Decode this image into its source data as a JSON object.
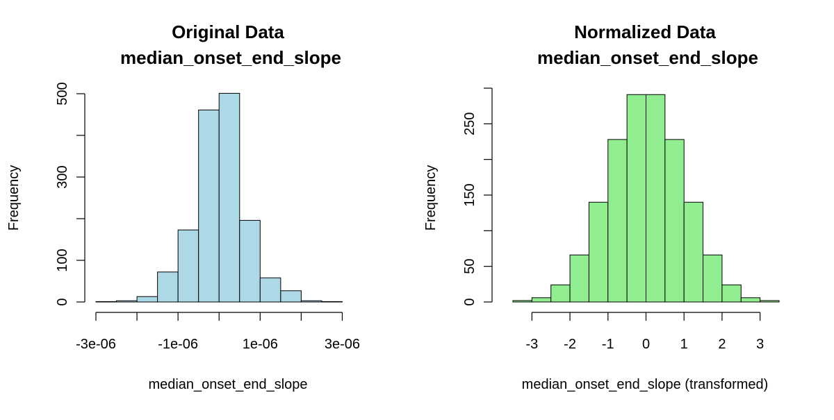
{
  "chart_data": [
    {
      "type": "bar",
      "title": "Original Data",
      "subtitle": "median_onset_end_slope",
      "xlabel": "median_onset_end_slope",
      "ylabel": "Frequency",
      "bar_color": "#add8e6",
      "bin_edges": [
        -3e-06,
        -2.5e-06,
        -2e-06,
        -1.5e-06,
        -1e-06,
        -5e-07,
        0,
        5e-07,
        1e-06,
        1.5e-06,
        2e-06,
        2.5e-06,
        3e-06,
        3.5e-06
      ],
      "values": [
        1,
        3,
        13,
        72,
        173,
        461,
        501,
        196,
        58,
        27,
        3,
        1,
        0
      ],
      "xlim": [
        -3e-06,
        3.5e-06
      ],
      "ylim": [
        0,
        520
      ],
      "x_ticks": [
        -3e-06,
        -2e-06,
        -1e-06,
        0,
        1e-06,
        2e-06,
        3e-06
      ],
      "x_tick_labels": [
        "-3e-06",
        "",
        "-1e-06",
        "",
        "1e-06",
        "",
        "3e-06"
      ],
      "y_ticks": [
        0,
        100,
        200,
        300,
        400,
        500
      ],
      "y_tick_labels": [
        "0",
        "100",
        "",
        "300",
        "",
        "500"
      ],
      "grid": false
    },
    {
      "type": "bar",
      "title": "Normalized Data",
      "subtitle": "median_onset_end_slope",
      "xlabel": "median_onset_end_slope (transformed)",
      "ylabel": "Frequency",
      "bar_color": "#90ee90",
      "bin_edges": [
        -3.5,
        -3,
        -2.5,
        -2,
        -1.5,
        -1,
        -0.5,
        0,
        0.5,
        1,
        1.5,
        2,
        2.5,
        3,
        3.5
      ],
      "values": [
        2,
        6,
        24,
        66,
        140,
        228,
        291,
        291,
        228,
        140,
        66,
        24,
        6,
        2
      ],
      "xlim": [
        -3.5,
        3.5
      ],
      "ylim": [
        0,
        300
      ],
      "x_ticks": [
        -3,
        -2,
        -1,
        0,
        1,
        2,
        3
      ],
      "x_tick_labels": [
        "-3",
        "-2",
        "-1",
        "0",
        "1",
        "2",
        "3"
      ],
      "y_ticks": [
        0,
        50,
        100,
        150,
        200,
        250,
        300
      ],
      "y_tick_labels": [
        "0",
        "50",
        "",
        "150",
        "",
        "250",
        ""
      ],
      "grid": false
    }
  ]
}
